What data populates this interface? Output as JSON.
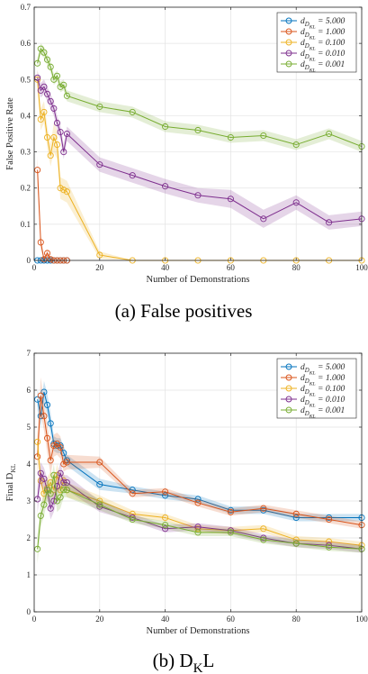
{
  "colors": {
    "s5": "#0072BD",
    "s1": "#D95319",
    "s01": "#EDB120",
    "s001": "#7E2F8E",
    "s0001": "#77AC30"
  },
  "chart_data": [
    {
      "type": "line",
      "caption": "(a) False positives",
      "xlabel": "Number of Demonstrations",
      "ylabel": "False Positive Rate",
      "xlim": [
        0,
        100
      ],
      "ylim": [
        0,
        0.7
      ],
      "xticks": [
        0,
        20,
        40,
        60,
        80,
        100
      ],
      "yticks": [
        0,
        0.1,
        0.2,
        0.3,
        0.4,
        0.5,
        0.6,
        0.7
      ],
      "grid": true,
      "legend_position": "top-right",
      "series": [
        {
          "name": "d_{D_{KL}} = 5.000",
          "color_key": "s5",
          "x": [
            1,
            2,
            3,
            4,
            5,
            6,
            7,
            8,
            9,
            10
          ],
          "y": [
            0,
            0,
            0,
            0,
            0,
            0,
            0,
            0,
            0,
            0
          ],
          "band": [
            0,
            0,
            0,
            0,
            0,
            0,
            0,
            0,
            0,
            0
          ]
        },
        {
          "name": "d_{D_{KL}} = 1.000",
          "color_key": "s1",
          "x": [
            1,
            2,
            3,
            4,
            5,
            6,
            7,
            8,
            9,
            10
          ],
          "y": [
            0.25,
            0.05,
            0.003,
            0.02,
            0.003,
            0,
            0,
            0,
            0,
            0
          ],
          "band": [
            0.04,
            0.02,
            0.005,
            0.01,
            0.005,
            0,
            0,
            0,
            0,
            0
          ]
        },
        {
          "name": "d_{D_{KL}} = 0.100",
          "color_key": "s01",
          "x": [
            1,
            2,
            3,
            4,
            5,
            6,
            7,
            8,
            9,
            10,
            20,
            30,
            40,
            50,
            60,
            70,
            80,
            90,
            100
          ],
          "y": [
            0.5,
            0.39,
            0.41,
            0.34,
            0.29,
            0.34,
            0.32,
            0.2,
            0.195,
            0.19,
            0.015,
            0,
            0,
            0,
            0,
            0,
            0,
            0,
            0
          ],
          "band": [
            0.03,
            0.03,
            0.03,
            0.03,
            0.03,
            0.04,
            0.04,
            0.03,
            0.03,
            0.03,
            0.01,
            0,
            0,
            0,
            0,
            0,
            0,
            0,
            0
          ]
        },
        {
          "name": "d_{D_{KL}} = 0.010",
          "color_key": "s001",
          "x": [
            1,
            2,
            3,
            4,
            5,
            6,
            7,
            8,
            9,
            10,
            20,
            30,
            40,
            50,
            60,
            70,
            80,
            90,
            100
          ],
          "y": [
            0.505,
            0.47,
            0.48,
            0.46,
            0.44,
            0.42,
            0.38,
            0.355,
            0.3,
            0.35,
            0.265,
            0.235,
            0.205,
            0.18,
            0.17,
            0.115,
            0.16,
            0.105,
            0.115
          ],
          "band": [
            0.02,
            0.02,
            0.02,
            0.02,
            0.02,
            0.02,
            0.02,
            0.02,
            0.02,
            0.02,
            0.02,
            0.02,
            0.02,
            0.02,
            0.025,
            0.025,
            0.02,
            0.02,
            0.02
          ]
        },
        {
          "name": "d_{D_{KL}} = 0.001",
          "color_key": "s0001",
          "x": [
            1,
            2,
            3,
            4,
            5,
            6,
            7,
            8,
            9,
            10,
            20,
            30,
            40,
            50,
            60,
            70,
            80,
            90,
            100
          ],
          "y": [
            0.545,
            0.585,
            0.575,
            0.555,
            0.535,
            0.5,
            0.51,
            0.48,
            0.485,
            0.455,
            0.425,
            0.41,
            0.37,
            0.36,
            0.34,
            0.345,
            0.32,
            0.35,
            0.315
          ],
          "band": [
            0.015,
            0.015,
            0.015,
            0.015,
            0.015,
            0.015,
            0.015,
            0.015,
            0.015,
            0.015,
            0.015,
            0.015,
            0.015,
            0.015,
            0.015,
            0.015,
            0.015,
            0.015,
            0.015
          ]
        }
      ]
    },
    {
      "type": "line",
      "caption": "(b) D_KL",
      "xlabel": "Number of Demonstrations",
      "ylabel": "Final D_{KL}",
      "xlim": [
        0,
        100
      ],
      "ylim": [
        0,
        7
      ],
      "xticks": [
        0,
        20,
        40,
        60,
        80,
        100
      ],
      "yticks": [
        0,
        1,
        2,
        3,
        4,
        5,
        6,
        7
      ],
      "grid": true,
      "legend_position": "top-right",
      "series": [
        {
          "name": "d_{D_{KL}} = 5.000",
          "color_key": "s5",
          "x": [
            1,
            2,
            3,
            4,
            5,
            6,
            7,
            8,
            9,
            10,
            20,
            30,
            40,
            50,
            60,
            70,
            80,
            90,
            100
          ],
          "y": [
            5.75,
            5.3,
            5.95,
            5.6,
            5.1,
            4.55,
            4.5,
            4.5,
            4.3,
            4.1,
            3.45,
            3.3,
            3.15,
            3.05,
            2.75,
            2.75,
            2.55,
            2.55,
            2.55
          ],
          "band": [
            0.3,
            0.3,
            0.3,
            0.3,
            0.3,
            0.2,
            0.2,
            0.2,
            0.2,
            0.15,
            0.15,
            0.1,
            0.1,
            0.1,
            0.1,
            0.1,
            0.1,
            0.1,
            0.1
          ]
        },
        {
          "name": "d_{D_{KL}} = 1.000",
          "color_key": "s1",
          "x": [
            1,
            2,
            3,
            4,
            5,
            6,
            7,
            8,
            9,
            10,
            20,
            30,
            40,
            50,
            60,
            70,
            80,
            90,
            100
          ],
          "y": [
            4.2,
            5.85,
            5.3,
            4.7,
            4.1,
            4.5,
            4.55,
            4.45,
            4.0,
            4.05,
            4.05,
            3.2,
            3.25,
            2.95,
            2.7,
            2.8,
            2.65,
            2.5,
            2.35
          ],
          "band": [
            0.5,
            0.5,
            0.4,
            0.4,
            0.4,
            0.3,
            0.3,
            0.3,
            0.2,
            0.2,
            0.15,
            0.1,
            0.1,
            0.1,
            0.1,
            0.1,
            0.1,
            0.1,
            0.1
          ]
        },
        {
          "name": "d_{D_{KL}} = 0.100",
          "color_key": "s01",
          "x": [
            1,
            2,
            3,
            4,
            5,
            6,
            7,
            8,
            9,
            10,
            20,
            30,
            40,
            50,
            60,
            70,
            80,
            90,
            100
          ],
          "y": [
            4.6,
            3.55,
            3.2,
            3.35,
            3.5,
            3.3,
            3.7,
            3.3,
            3.55,
            3.3,
            3.0,
            2.65,
            2.55,
            2.25,
            2.2,
            2.25,
            1.95,
            1.9,
            1.8
          ],
          "band": [
            0.4,
            0.3,
            0.3,
            0.3,
            0.3,
            0.3,
            0.3,
            0.3,
            0.2,
            0.2,
            0.15,
            0.1,
            0.1,
            0.1,
            0.1,
            0.1,
            0.1,
            0.1,
            0.1
          ]
        },
        {
          "name": "d_{D_{KL}} = 0.010",
          "color_key": "s001",
          "x": [
            1,
            2,
            3,
            4,
            5,
            6,
            7,
            8,
            9,
            10,
            20,
            30,
            40,
            50,
            60,
            70,
            80,
            90,
            100
          ],
          "y": [
            3.05,
            3.75,
            3.6,
            3.3,
            2.8,
            3.0,
            3.4,
            3.75,
            3.5,
            3.5,
            2.85,
            2.55,
            2.25,
            2.3,
            2.2,
            2.0,
            1.85,
            1.8,
            1.7
          ],
          "band": [
            0.4,
            0.3,
            0.3,
            0.3,
            0.3,
            0.3,
            0.3,
            0.3,
            0.2,
            0.2,
            0.15,
            0.1,
            0.1,
            0.1,
            0.1,
            0.1,
            0.1,
            0.1,
            0.1
          ]
        },
        {
          "name": "d_{D_{KL}} = 0.001",
          "color_key": "s0001",
          "x": [
            1,
            2,
            3,
            4,
            5,
            6,
            7,
            8,
            9,
            10,
            20,
            30,
            40,
            50,
            60,
            70,
            80,
            90,
            100
          ],
          "y": [
            1.7,
            2.6,
            2.9,
            3.3,
            3.2,
            3.7,
            3.0,
            3.1,
            3.3,
            3.3,
            2.9,
            2.5,
            2.35,
            2.15,
            2.15,
            1.95,
            1.85,
            1.75,
            1.7
          ],
          "band": [
            0.4,
            0.3,
            0.3,
            0.3,
            0.3,
            0.3,
            0.3,
            0.3,
            0.2,
            0.2,
            0.15,
            0.1,
            0.1,
            0.1,
            0.1,
            0.1,
            0.1,
            0.1,
            0.1
          ]
        }
      ]
    }
  ]
}
